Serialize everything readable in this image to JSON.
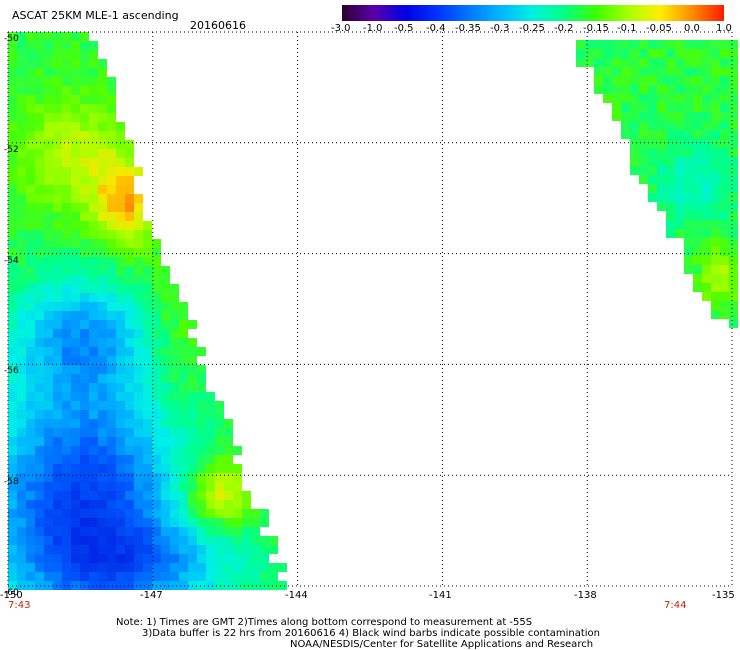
{
  "header": {
    "title": "ASCAT 25KM MLE-1 ascending",
    "date": "20160616"
  },
  "colorbar": {
    "labels": [
      "-3.0",
      "-1.0",
      "-0.5",
      "-0.4",
      "-0.35",
      "-0.3",
      "-0.25",
      "-0.2",
      "-0.15",
      "-0.1",
      "-0.05",
      "0.0",
      "1.0"
    ],
    "colors": [
      "#2a0030",
      "#5a00a8",
      "#0000e6",
      "#0033ff",
      "#0077ff",
      "#00b8ff",
      "#00f0e0",
      "#00ff80",
      "#40ff00",
      "#a8ff00",
      "#ffee00",
      "#ff8c00",
      "#ff1a00"
    ]
  },
  "map": {
    "lon_ticks": [
      "-150",
      "-147",
      "-144",
      "-141",
      "-138",
      "-135"
    ],
    "lat_ticks": [
      "-50",
      "-52",
      "-54",
      "-56",
      "-58",
      "-60"
    ],
    "lon_range": [
      -150,
      -135
    ],
    "lat_range": [
      -60,
      -50
    ],
    "grid": true
  },
  "times": {
    "left": "7:43",
    "right": "7:44"
  },
  "notes": {
    "line1": "Note: 1) Times are GMT 2)Times along bottom correspond to measurement at -55S",
    "line2": "3)Data buffer is 22 hrs from 20160616 4) Black wind barbs indicate possible contamination",
    "line3": "NOAA/NESDIS/Center for Satellite Applications and Research"
  }
}
